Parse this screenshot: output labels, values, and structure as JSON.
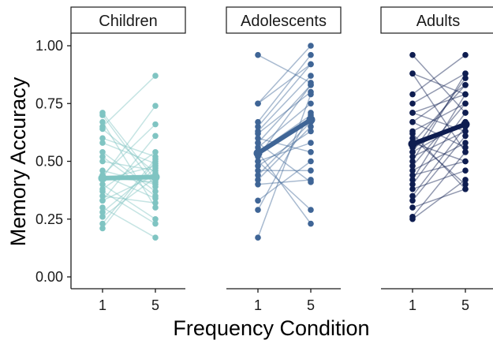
{
  "chart_data": {
    "type": "line",
    "xlabel": "Frequency Condition",
    "ylabel": "Memory Accuracy",
    "ylim": [
      0,
      1.05
    ],
    "y_ticks": [
      "0.00",
      "0.25",
      "0.50",
      "0.75",
      "1.00"
    ],
    "y_tick_values": [
      0,
      0.25,
      0.5,
      0.75,
      1.0
    ],
    "x_categories": [
      "1",
      "5"
    ],
    "grid": false,
    "legend": "none",
    "panels": [
      {
        "name": "Children",
        "color": "#7fc4c2",
        "mean": [
          0.427,
          0.432
        ],
        "subjects": [
          [
            0.71,
            0.42
          ],
          [
            0.7,
            0.39
          ],
          [
            0.67,
            0.3
          ],
          [
            0.64,
            0.45
          ],
          [
            0.6,
            0.52
          ],
          [
            0.58,
            0.49
          ],
          [
            0.54,
            0.37
          ],
          [
            0.52,
            0.35
          ],
          [
            0.5,
            0.46
          ],
          [
            0.46,
            0.4
          ],
          [
            0.44,
            0.34
          ],
          [
            0.43,
            0.41
          ],
          [
            0.42,
            0.48
          ],
          [
            0.4,
            0.25
          ],
          [
            0.38,
            0.54
          ],
          [
            0.37,
            0.23
          ],
          [
            0.35,
            0.32
          ],
          [
            0.33,
            0.44
          ],
          [
            0.3,
            0.17
          ],
          [
            0.28,
            0.47
          ],
          [
            0.26,
            0.43
          ],
          [
            0.23,
            0.51
          ],
          [
            0.21,
            0.5
          ],
          [
            0.43,
            0.74
          ],
          [
            0.65,
            0.87
          ],
          [
            0.44,
            0.66
          ],
          [
            0.33,
            0.61
          ]
        ]
      },
      {
        "name": "Adolescents",
        "color": "#3f6596",
        "mean": [
          0.535,
          0.68
        ],
        "subjects": [
          [
            0.96,
            0.84
          ],
          [
            0.75,
            1.0
          ],
          [
            0.75,
            0.92
          ],
          [
            0.67,
            0.96
          ],
          [
            0.63,
            0.87
          ],
          [
            0.62,
            0.8
          ],
          [
            0.58,
            0.83
          ],
          [
            0.56,
            0.75
          ],
          [
            0.54,
            0.7
          ],
          [
            0.54,
            0.23
          ],
          [
            0.5,
            0.58
          ],
          [
            0.5,
            0.29
          ],
          [
            0.48,
            0.63
          ],
          [
            0.46,
            0.46
          ],
          [
            0.42,
            0.65
          ],
          [
            0.4,
            0.42
          ],
          [
            0.33,
            0.5
          ],
          [
            0.29,
            0.71
          ],
          [
            0.17,
            0.79
          ],
          [
            0.6,
            0.54
          ],
          [
            0.52,
            0.83
          ],
          [
            0.44,
            0.67
          ],
          [
            0.65,
            0.92
          ],
          [
            0.58,
            0.41
          ]
        ]
      },
      {
        "name": "Adults",
        "color": "#0e1d50",
        "mean": [
          0.575,
          0.66
        ],
        "subjects": [
          [
            0.96,
            0.71
          ],
          [
            0.88,
            0.79
          ],
          [
            0.88,
            0.54
          ],
          [
            0.79,
            0.96
          ],
          [
            0.75,
            0.88
          ],
          [
            0.71,
            0.63
          ],
          [
            0.67,
            0.83
          ],
          [
            0.63,
            0.75
          ],
          [
            0.58,
            0.5
          ],
          [
            0.58,
            0.83
          ],
          [
            0.54,
            0.67
          ],
          [
            0.5,
            0.88
          ],
          [
            0.46,
            0.58
          ],
          [
            0.42,
            0.79
          ],
          [
            0.4,
            0.71
          ],
          [
            0.38,
            0.46
          ],
          [
            0.33,
            0.61
          ],
          [
            0.3,
            0.38
          ],
          [
            0.26,
            0.54
          ],
          [
            0.25,
            0.42
          ],
          [
            0.6,
            0.4
          ],
          [
            0.56,
            0.67
          ],
          [
            0.48,
            0.75
          ],
          [
            0.67,
            0.56
          ],
          [
            0.52,
            0.63
          ],
          [
            0.44,
            0.5
          ],
          [
            0.35,
            0.65
          ],
          [
            0.71,
            0.79
          ],
          [
            0.62,
            0.38
          ],
          [
            0.54,
            0.86
          ]
        ]
      }
    ]
  }
}
